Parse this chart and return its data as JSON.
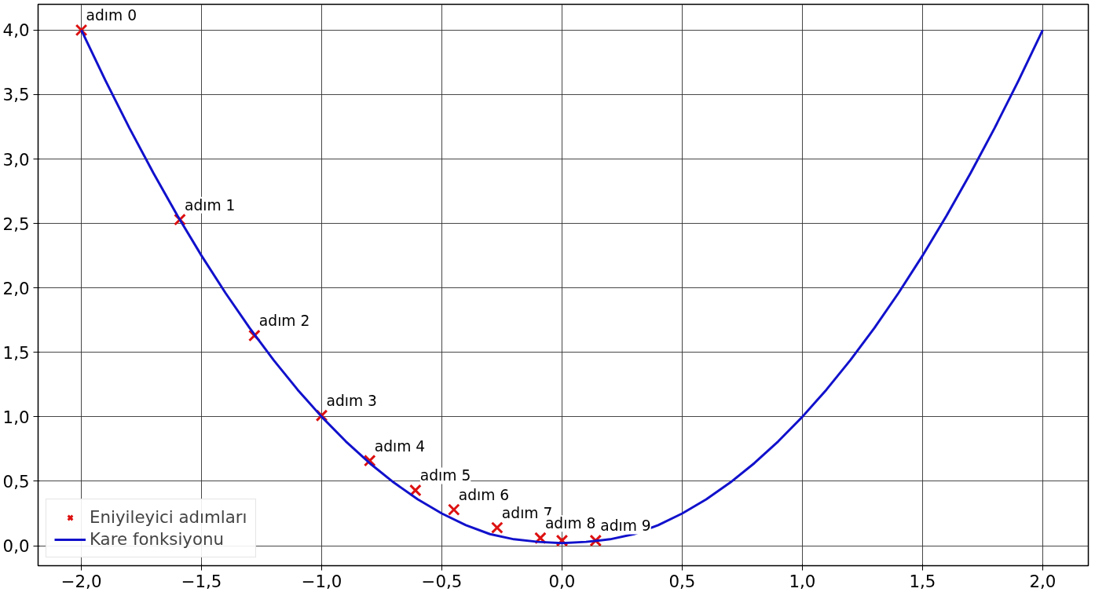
{
  "chart_data": {
    "type": "line",
    "xlim": [
      -2.18,
      2.19
    ],
    "ylim": [
      -0.155,
      4.2
    ],
    "xticks": [
      {
        "value": -2.0,
        "label": "−2,0"
      },
      {
        "value": -1.5,
        "label": "−1,5"
      },
      {
        "value": -1.0,
        "label": "−1,0"
      },
      {
        "value": -0.5,
        "label": "−0,5"
      },
      {
        "value": 0.0,
        "label": "0,0"
      },
      {
        "value": 0.5,
        "label": "0,5"
      },
      {
        "value": 1.0,
        "label": "1,0"
      },
      {
        "value": 1.5,
        "label": "1,5"
      },
      {
        "value": 2.0,
        "label": "2,0"
      }
    ],
    "yticks": [
      {
        "value": 0.0,
        "label": "0,0"
      },
      {
        "value": 0.5,
        "label": "0,5"
      },
      {
        "value": 1.0,
        "label": "1,0"
      },
      {
        "value": 1.5,
        "label": "1,5"
      },
      {
        "value": 2.0,
        "label": "2,0"
      },
      {
        "value": 2.5,
        "label": "2,5"
      },
      {
        "value": 3.0,
        "label": "3,0"
      },
      {
        "value": 3.5,
        "label": "3,5"
      },
      {
        "value": 4.0,
        "label": "4,0"
      }
    ],
    "grid": true,
    "legend": "bottom left",
    "series": [
      {
        "name": "Eniyileyici adımları",
        "type": "scatter",
        "marker": "cross",
        "color": "#dd1111",
        "x": [
          -2.0,
          -1.59,
          -1.28,
          -1.0,
          -0.8,
          -0.61,
          -0.45,
          -0.27,
          -0.09,
          0.0,
          0.14
        ],
        "values": [
          4.0,
          2.53,
          1.63,
          1.01,
          0.66,
          0.43,
          0.28,
          0.14,
          0.06,
          0.04,
          0.04
        ],
        "value_labels": [
          "adım 0",
          "adım 1",
          "adım 2",
          "adım 3",
          "adım 4",
          "adım 5",
          "adım 6",
          "adım 7",
          "adım 8",
          null,
          "adım 9"
        ]
      },
      {
        "name": "Kare fonksiyonu",
        "color": "#1111cc",
        "x": [
          -2.0,
          -1.9,
          -1.8,
          -1.7,
          -1.6,
          -1.5,
          -1.4,
          -1.3,
          -1.2,
          -1.1,
          -1.0,
          -0.9,
          -0.8,
          -0.7,
          -0.6,
          -0.5,
          -0.4,
          -0.3,
          -0.2,
          -0.1,
          0.0,
          0.1,
          0.2,
          0.3,
          0.4,
          0.5,
          0.6,
          0.7,
          0.8,
          0.9,
          1.0,
          1.1,
          1.2,
          1.3,
          1.4,
          1.5,
          1.6,
          1.7,
          1.8,
          1.9,
          2.0
        ],
        "values": [
          4.0,
          3.61,
          3.24,
          2.89,
          2.56,
          2.25,
          1.96,
          1.69,
          1.44,
          1.21,
          1.0,
          0.81,
          0.64,
          0.49,
          0.36,
          0.25,
          0.16,
          0.09,
          0.05,
          0.03,
          0.02,
          0.03,
          0.05,
          0.09,
          0.16,
          0.25,
          0.36,
          0.49,
          0.64,
          0.81,
          1.0,
          1.21,
          1.44,
          1.69,
          1.96,
          2.25,
          2.56,
          2.89,
          3.24,
          3.61,
          4.0
        ]
      }
    ]
  }
}
